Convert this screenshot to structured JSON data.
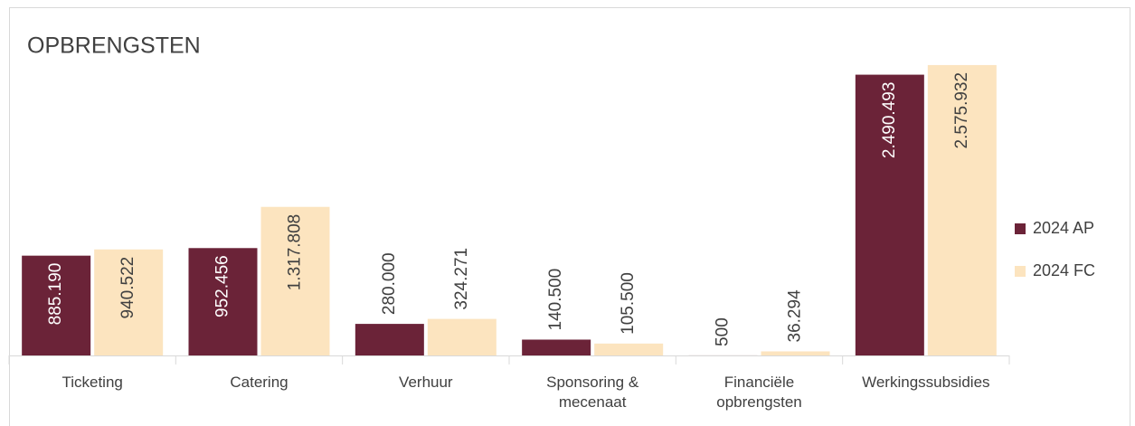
{
  "chart_data": {
    "type": "bar",
    "title": "OPBRENGSTEN",
    "categories": [
      "Ticketing",
      "Catering",
      "Verhuur",
      "Sponsoring & mecenaat",
      "Financiële opbrengsten",
      "Werkingssubsidies"
    ],
    "series": [
      {
        "name": "2024 AP",
        "color": "#6b2338",
        "values": [
          885190,
          952456,
          280000,
          140500,
          500,
          2490493
        ],
        "value_labels": [
          "885.190",
          "952.456",
          "280.000",
          "140.500",
          "500",
          "2.490.493"
        ]
      },
      {
        "name": "2024 FC",
        "color": "#fce4bf",
        "values": [
          940522,
          1317808,
          324271,
          105500,
          36294,
          2575932
        ],
        "value_labels": [
          "940.522",
          "1.317.808",
          "324.271",
          "105.500",
          "36.294",
          "2.575.932"
        ]
      }
    ],
    "ylim": [
      0,
      2800000
    ],
    "legend": "right"
  }
}
